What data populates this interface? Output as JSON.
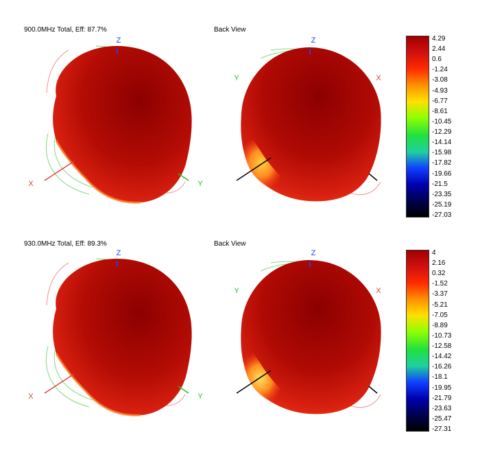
{
  "chart_data": [
    {
      "type": "3d-radiation-pattern",
      "title": "900.0MHz Total, Eff: 87.7%",
      "view_titles": [
        "",
        "Back View"
      ],
      "axis_labels": {
        "x": "X",
        "y": "Y",
        "z": "Z"
      },
      "colorbar": {
        "ticks": [
          "4.29",
          "2.44",
          "0.6",
          "-1.24",
          "-3.08",
          "-4.93",
          "-6.77",
          "-8.61",
          "-10.45",
          "-12.29",
          "-14.14",
          "-15.98",
          "-17.82",
          "-19.66",
          "-21.5",
          "-23.35",
          "-25.19",
          "-27.03"
        ],
        "min": -27.03,
        "max": 4.29
      }
    },
    {
      "type": "3d-radiation-pattern",
      "title": "930.0MHz Total, Eff: 89.3%",
      "view_titles": [
        "",
        "Back View"
      ],
      "axis_labels": {
        "x": "X",
        "y": "Y",
        "z": "Z"
      },
      "colorbar": {
        "ticks": [
          "4",
          "2.16",
          "0.32",
          "-1.52",
          "-3.37",
          "-5.21",
          "-7.05",
          "-8.89",
          "-10.73",
          "-12.58",
          "-14.42",
          "-16.26",
          "-18.1",
          "-19.95",
          "-21.79",
          "-23.63",
          "-25.47",
          "-27.31"
        ],
        "min": -27.31,
        "max": 4
      }
    }
  ],
  "colors": {
    "colormap": [
      "#a00000",
      "#d01010",
      "#ff2a00",
      "#ff9000",
      "#ffe000",
      "#90ff00",
      "#20e040",
      "#20d0a0",
      "#1040ff",
      "#0000b0",
      "#000050",
      "#000000"
    ],
    "pattern_dark": "#8c0000",
    "pattern_mid": "#c81a0c",
    "pattern_hot": "#ffc030",
    "x_axis": "#e04040",
    "y_axis": "#20c020",
    "z_axis": "#2040ff",
    "grid_green": "#8fe08f",
    "grid_pink": "#f0a0a0"
  }
}
